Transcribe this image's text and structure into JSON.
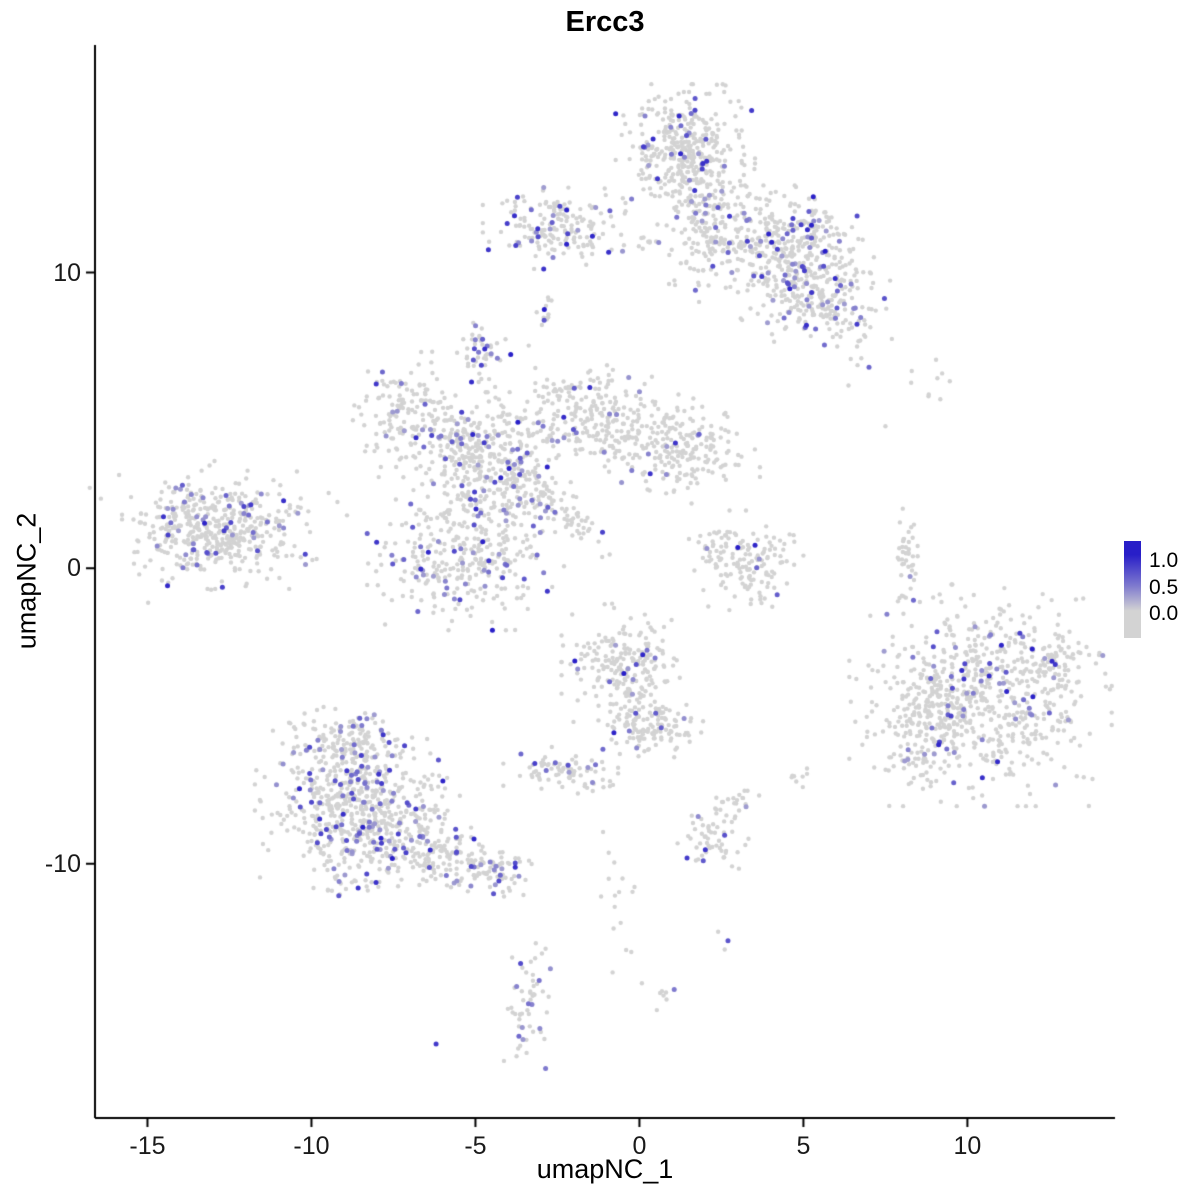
{
  "chart_data": {
    "type": "scatter",
    "title": "Ercc3",
    "xlabel": "umapNC_1",
    "ylabel": "umapNC_2",
    "xlim": [
      -16.6,
      14.5
    ],
    "ylim": [
      -18.6,
      17.7
    ],
    "x_ticks": [
      -15,
      -10,
      -5,
      0,
      5,
      10
    ],
    "y_ticks": [
      -10,
      0,
      10
    ],
    "grid": false,
    "legend": {
      "position": "right",
      "labels": [
        "1.0",
        "0.5",
        "0.0"
      ],
      "low_color": "#D3D3D3",
      "high_color": "#281EC8"
    },
    "clusters": [
      {
        "cx": 1.4,
        "cy": 14.0,
        "sx": 0.85,
        "sy": 0.95,
        "n": 380,
        "expr": 0.07
      },
      {
        "cx": 2.0,
        "cy": 11.7,
        "sx": 0.55,
        "sy": 1.1,
        "n": 140,
        "expr": 0.05
      },
      {
        "cx": 3.7,
        "cy": 11.2,
        "sx": 0.9,
        "sy": 0.7,
        "n": 180,
        "expr": 0.1
      },
      {
        "cx": 5.0,
        "cy": 9.6,
        "sx": 1.3,
        "sy": 0.85,
        "n": 380,
        "expr": 0.1,
        "rot": -40
      },
      {
        "cx": 5.6,
        "cy": 11.4,
        "sx": 0.5,
        "sy": 0.4,
        "n": 55,
        "expr": 0.18
      },
      {
        "cx": -2.4,
        "cy": 11.5,
        "sx": 0.95,
        "sy": 0.55,
        "n": 170,
        "expr": 0.13
      },
      {
        "cx": -0.9,
        "cy": 11.1,
        "sx": 0.8,
        "sy": 0.15,
        "n": 18,
        "expr": 0.02
      },
      {
        "cx": -2.9,
        "cy": 8.7,
        "sx": 0.2,
        "sy": 0.3,
        "n": 12,
        "expr": 0.08
      },
      {
        "cx": -4.8,
        "cy": 7.3,
        "sx": 0.35,
        "sy": 0.4,
        "n": 45,
        "expr": 0.25
      },
      {
        "cx": -12.9,
        "cy": 1.3,
        "sx": 1.15,
        "sy": 0.8,
        "n": 430,
        "expr": 0.16
      },
      {
        "cx": -12.7,
        "cy": 1.4,
        "sx": 1.9,
        "sy": 1.2,
        "n": 60,
        "expr": 0.04
      },
      {
        "cx": -7.1,
        "cy": 5.2,
        "sx": 0.75,
        "sy": 0.85,
        "n": 160,
        "expr": 0.14
      },
      {
        "cx": -5.6,
        "cy": 4.1,
        "sx": 0.6,
        "sy": 0.6,
        "n": 90,
        "expr": 0.08
      },
      {
        "cx": -4.3,
        "cy": 3.2,
        "sx": 0.95,
        "sy": 1.1,
        "n": 330,
        "expr": 0.13
      },
      {
        "cx": -1.4,
        "cy": 5.2,
        "sx": 1.3,
        "sy": 0.75,
        "n": 240,
        "expr": 0.06,
        "rot": -15
      },
      {
        "cx": 1.3,
        "cy": 4.0,
        "sx": 0.95,
        "sy": 0.75,
        "n": 200,
        "expr": 0.05
      },
      {
        "cx": -5.3,
        "cy": 0.4,
        "sx": 1.2,
        "sy": 1.0,
        "n": 300,
        "expr": 0.12
      },
      {
        "cx": -2.3,
        "cy": 1.9,
        "sx": 0.8,
        "sy": 0.18,
        "n": 60,
        "expr": 0.08,
        "rot": -45
      },
      {
        "cx": -3.9,
        "cy": 5.0,
        "sx": 0.8,
        "sy": 0.5,
        "n": 40,
        "expr": 0.05
      },
      {
        "cx": 2.4,
        "cy": 0.7,
        "sx": 0.4,
        "sy": 0.5,
        "n": 45,
        "expr": 0.06
      },
      {
        "cx": 3.2,
        "cy": -0.2,
        "sx": 0.5,
        "sy": 0.6,
        "n": 70,
        "expr": 0.04
      },
      {
        "cx": 4.0,
        "cy": 0.3,
        "sx": 0.4,
        "sy": 0.5,
        "n": 40,
        "expr": 0.06
      },
      {
        "cx": 8.1,
        "cy": 0.2,
        "sx": 0.18,
        "sy": 0.85,
        "n": 45,
        "expr": 0.02
      },
      {
        "cx": 9.0,
        "cy": 6.3,
        "sx": 0.7,
        "sy": 0.3,
        "n": 9,
        "expr": 0
      },
      {
        "cx": 10.4,
        "cy": -4.3,
        "sx": 1.6,
        "sy": 1.5,
        "n": 650,
        "expr": 0.07
      },
      {
        "cx": 8.7,
        "cy": -5.4,
        "sx": 0.7,
        "sy": 1.0,
        "n": 130,
        "expr": 0.08
      },
      {
        "cx": 12.6,
        "cy": -3.2,
        "sx": 0.6,
        "sy": 0.6,
        "n": 60,
        "expr": 0.08
      },
      {
        "cx": -8.9,
        "cy": -5.9,
        "sx": 0.85,
        "sy": 0.55,
        "n": 140,
        "expr": 0.12
      },
      {
        "cx": -8.6,
        "cy": -8.2,
        "sx": 1.25,
        "sy": 1.25,
        "n": 600,
        "expr": 0.16
      },
      {
        "cx": -6.3,
        "cy": -9.6,
        "sx": 1.1,
        "sy": 0.6,
        "n": 180,
        "expr": 0.12,
        "rot": -10
      },
      {
        "cx": -4.4,
        "cy": -10.3,
        "sx": 0.5,
        "sy": 0.35,
        "n": 60,
        "expr": 0.18
      },
      {
        "cx": -0.5,
        "cy": -3.2,
        "sx": 0.75,
        "sy": 0.8,
        "n": 190,
        "expr": 0.09
      },
      {
        "cx": 0.0,
        "cy": -5.0,
        "sx": 0.5,
        "sy": 0.7,
        "n": 110,
        "expr": 0.05
      },
      {
        "cx": 0.9,
        "cy": -5.3,
        "sx": 0.5,
        "sy": 0.4,
        "n": 50,
        "expr": 0.04
      },
      {
        "cx": -2.4,
        "cy": -6.8,
        "sx": 0.7,
        "sy": 0.3,
        "n": 70,
        "expr": 0.1
      },
      {
        "cx": -1.3,
        "cy": -7.3,
        "sx": 0.4,
        "sy": 0.2,
        "n": 10,
        "expr": 0
      },
      {
        "cx": 2.2,
        "cy": -9.2,
        "sx": 0.45,
        "sy": 0.5,
        "n": 55,
        "expr": 0.1
      },
      {
        "cx": 2.9,
        "cy": -7.9,
        "sx": 0.3,
        "sy": 0.3,
        "n": 22,
        "expr": 0.05
      },
      {
        "cx": 4.9,
        "cy": -7.2,
        "sx": 0.2,
        "sy": 0.25,
        "n": 8,
        "expr": 0.25
      },
      {
        "cx": -0.7,
        "cy": -11.3,
        "sx": 0.3,
        "sy": 0.95,
        "n": 16,
        "expr": 0.08
      },
      {
        "cx": -3.4,
        "cy": -14.8,
        "sx": 0.3,
        "sy": 0.85,
        "n": 50,
        "expr": 0.22
      },
      {
        "cx": -3.2,
        "cy": -13.3,
        "sx": 0.2,
        "sy": 0.5,
        "n": 7,
        "expr": 0
      },
      {
        "cx": 0.7,
        "cy": -14.2,
        "sx": 0.25,
        "sy": 0.3,
        "n": 8,
        "expr": 0.2
      }
    ],
    "singles": [
      [
        -6.2,
        -16.1,
        0.85
      ],
      [
        2.7,
        -12.6,
        0.7
      ],
      [
        2.4,
        -12.3,
        0
      ],
      [
        2.6,
        -12.9,
        0
      ],
      [
        -2.9,
        8.75,
        1.0
      ],
      [
        3.0,
        0.7,
        1.0
      ],
      [
        4.2,
        -0.9,
        0.65
      ],
      [
        7.0,
        6.8,
        0.6
      ],
      [
        7.5,
        4.8,
        0
      ],
      [
        11.6,
        -2.2,
        0.8
      ],
      [
        12.5,
        -4.9,
        0.6
      ]
    ]
  }
}
